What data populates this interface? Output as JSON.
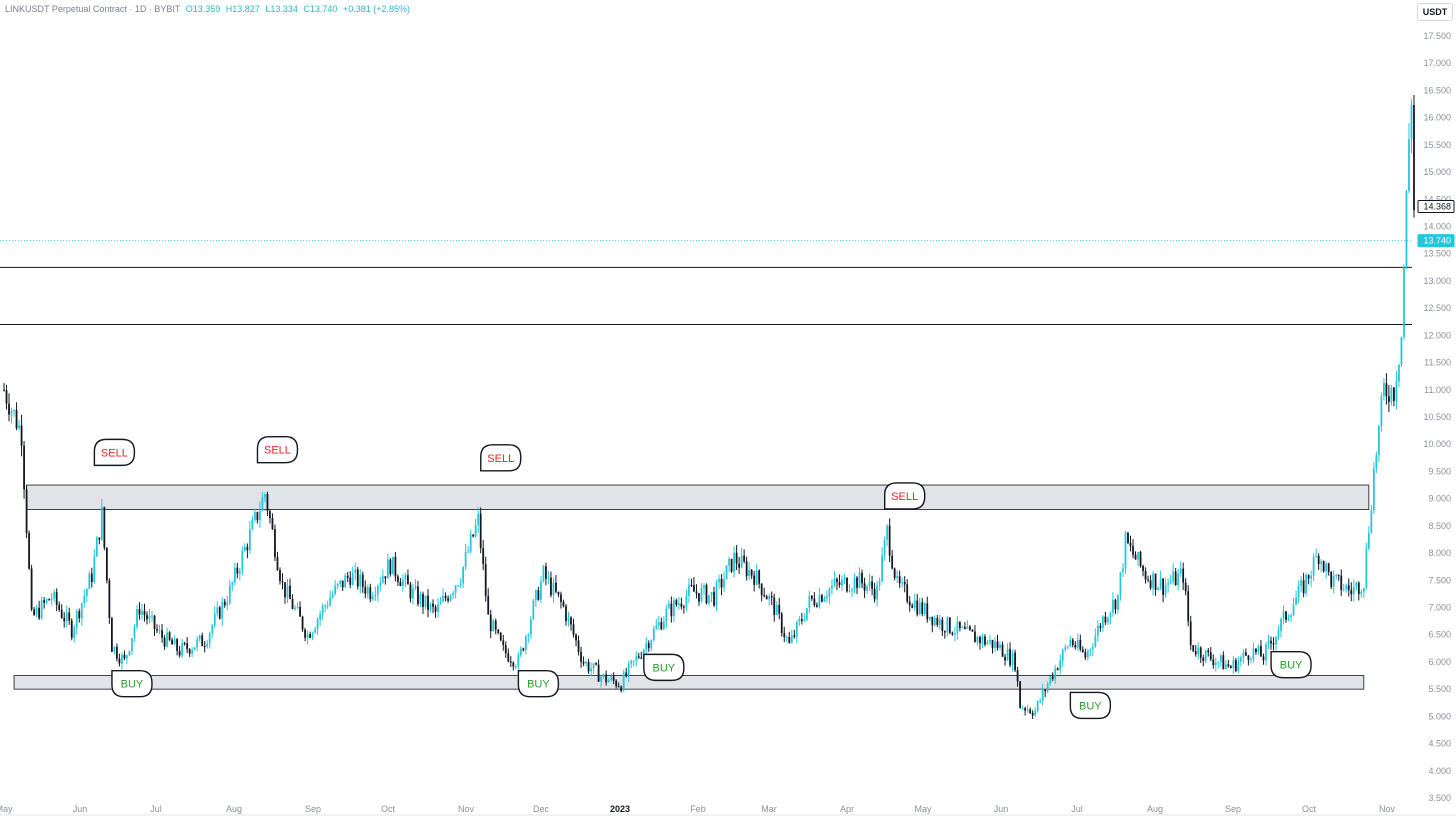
{
  "header": {
    "symbol": "LINKUSDT Perpetual Contract · 1D · BYBIT",
    "open": "O13.359",
    "high": "H13.827",
    "low": "L13.334",
    "close": "C13.740",
    "change": "+0.381 (+2.85%)"
  },
  "currency_badge": "USDT",
  "chart_data": {
    "type": "candlestick",
    "title": "LINKUSDT Perpetual Contract · 1D · BYBIT",
    "ylim": [
      3.5,
      18.0
    ],
    "y_ticks": [
      "3.500",
      "4.000",
      "4.500",
      "5.000",
      "5.500",
      "6.000",
      "6.500",
      "7.000",
      "7.500",
      "8.000",
      "8.500",
      "9.000",
      "9.500",
      "10.000",
      "10.500",
      "11.000",
      "11.500",
      "12.000",
      "12.500",
      "13.000",
      "13.500",
      "14.000",
      "14.500",
      "15.000",
      "15.500",
      "16.000",
      "16.500",
      "17.000",
      "17.500"
    ],
    "x_ticks": [
      "May",
      "Jun",
      "Jul",
      "Aug",
      "Sep",
      "Oct",
      "Nov",
      "Dec",
      "2023",
      "Feb",
      "Mar",
      "Apr",
      "May",
      "Jun",
      "Jul",
      "Aug",
      "Sep",
      "Oct",
      "Nov"
    ],
    "price_path": [
      {
        "date": "2022-05-01",
        "close": 11.0
      },
      {
        "date": "2022-05-08",
        "close": 10.2
      },
      {
        "date": "2022-05-12",
        "close": 6.8
      },
      {
        "date": "2022-05-20",
        "close": 7.2
      },
      {
        "date": "2022-05-28",
        "close": 6.6
      },
      {
        "date": "2022-06-05",
        "close": 7.6
      },
      {
        "date": "2022-06-09",
        "close": 8.7
      },
      {
        "date": "2022-06-13",
        "close": 6.3
      },
      {
        "date": "2022-06-18",
        "close": 6.0
      },
      {
        "date": "2022-06-24",
        "close": 7.0
      },
      {
        "date": "2022-07-02",
        "close": 6.5
      },
      {
        "date": "2022-07-10",
        "close": 6.2
      },
      {
        "date": "2022-07-20",
        "close": 6.4
      },
      {
        "date": "2022-07-30",
        "close": 7.3
      },
      {
        "date": "2022-08-06",
        "close": 8.2
      },
      {
        "date": "2022-08-13",
        "close": 9.1
      },
      {
        "date": "2022-08-20",
        "close": 7.4
      },
      {
        "date": "2022-08-30",
        "close": 6.5
      },
      {
        "date": "2022-09-08",
        "close": 7.2
      },
      {
        "date": "2022-09-16",
        "close": 7.6
      },
      {
        "date": "2022-09-24",
        "close": 7.3
      },
      {
        "date": "2022-10-02",
        "close": 7.8
      },
      {
        "date": "2022-10-10",
        "close": 7.3
      },
      {
        "date": "2022-10-20",
        "close": 6.9
      },
      {
        "date": "2022-10-30",
        "close": 7.6
      },
      {
        "date": "2022-11-06",
        "close": 8.6
      },
      {
        "date": "2022-11-10",
        "close": 6.8
      },
      {
        "date": "2022-11-16",
        "close": 6.2
      },
      {
        "date": "2022-11-22",
        "close": 6.0
      },
      {
        "date": "2022-11-28",
        "close": 7.0
      },
      {
        "date": "2022-12-02",
        "close": 7.6
      },
      {
        "date": "2022-12-10",
        "close": 7.0
      },
      {
        "date": "2022-12-18",
        "close": 6.0
      },
      {
        "date": "2022-12-26",
        "close": 5.7
      },
      {
        "date": "2023-01-02",
        "close": 5.6
      },
      {
        "date": "2023-01-10",
        "close": 6.2
      },
      {
        "date": "2023-01-20",
        "close": 6.9
      },
      {
        "date": "2023-01-30",
        "close": 7.3
      },
      {
        "date": "2023-02-08",
        "close": 7.2
      },
      {
        "date": "2023-02-16",
        "close": 7.9
      },
      {
        "date": "2023-02-24",
        "close": 7.6
      },
      {
        "date": "2023-03-04",
        "close": 7.0
      },
      {
        "date": "2023-03-10",
        "close": 6.3
      },
      {
        "date": "2023-03-18",
        "close": 7.1
      },
      {
        "date": "2023-03-28",
        "close": 7.4
      },
      {
        "date": "2023-04-06",
        "close": 7.5
      },
      {
        "date": "2023-04-14",
        "close": 7.3
      },
      {
        "date": "2023-04-18",
        "close": 8.4
      },
      {
        "date": "2023-04-22",
        "close": 7.4
      },
      {
        "date": "2023-05-01",
        "close": 7.0
      },
      {
        "date": "2023-05-10",
        "close": 6.7
      },
      {
        "date": "2023-05-20",
        "close": 6.5
      },
      {
        "date": "2023-06-01",
        "close": 6.3
      },
      {
        "date": "2023-06-08",
        "close": 6.0
      },
      {
        "date": "2023-06-10",
        "close": 5.2
      },
      {
        "date": "2023-06-16",
        "close": 5.1
      },
      {
        "date": "2023-06-22",
        "close": 5.7
      },
      {
        "date": "2023-06-30",
        "close": 6.4
      },
      {
        "date": "2023-07-06",
        "close": 6.1
      },
      {
        "date": "2023-07-13",
        "close": 6.8
      },
      {
        "date": "2023-07-19",
        "close": 7.2
      },
      {
        "date": "2023-07-22",
        "close": 8.2
      },
      {
        "date": "2023-07-30",
        "close": 7.6
      },
      {
        "date": "2023-08-06",
        "close": 7.4
      },
      {
        "date": "2023-08-14",
        "close": 7.6
      },
      {
        "date": "2023-08-17",
        "close": 6.3
      },
      {
        "date": "2023-08-24",
        "close": 6.1
      },
      {
        "date": "2023-09-02",
        "close": 5.9
      },
      {
        "date": "2023-09-10",
        "close": 6.2
      },
      {
        "date": "2023-09-15",
        "close": 6.1
      },
      {
        "date": "2023-09-22",
        "close": 6.7
      },
      {
        "date": "2023-10-01",
        "close": 7.4
      },
      {
        "date": "2023-10-07",
        "close": 8.0
      },
      {
        "date": "2023-10-12",
        "close": 7.5
      },
      {
        "date": "2023-10-20",
        "close": 7.3
      },
      {
        "date": "2023-10-25",
        "close": 7.5
      },
      {
        "date": "2023-10-29",
        "close": 9.5
      },
      {
        "date": "2023-11-02",
        "close": 11.0
      },
      {
        "date": "2023-11-06",
        "close": 11.0
      },
      {
        "date": "2023-11-09",
        "close": 12.0
      },
      {
        "date": "2023-11-11",
        "close": 14.5
      },
      {
        "date": "2023-11-12",
        "close": 15.6
      },
      {
        "date": "2023-11-13",
        "close": 16.4
      },
      {
        "date": "2023-11-14",
        "close": 14.3
      }
    ],
    "horizontal_lines": [
      12.2,
      13.25
    ],
    "current_price_line": 13.74,
    "price_labels": [
      {
        "text": "14.368",
        "value": 14.368,
        "color": "#131722",
        "fill": "#ffffff"
      },
      {
        "text": "13.740",
        "value": 13.74,
        "color": "#ffffff",
        "fill": "#26c6da"
      }
    ],
    "zones": [
      {
        "name": "resistance-zone",
        "low": 8.8,
        "high": 9.25,
        "start": "2022-05-10",
        "end": "2023-10-27"
      },
      {
        "name": "support-zone",
        "low": 5.5,
        "high": 5.75,
        "start": "2022-05-05",
        "end": "2023-10-25"
      }
    ],
    "annotations": [
      {
        "text": "SELL",
        "type": "sell",
        "date": "2022-06-14",
        "value": 9.85
      },
      {
        "text": "SELL",
        "type": "sell",
        "date": "2022-08-18",
        "value": 9.9
      },
      {
        "text": "SELL",
        "type": "sell",
        "date": "2022-11-15",
        "value": 9.75
      },
      {
        "text": "SELL",
        "type": "sell",
        "date": "2023-04-25",
        "value": 9.05
      },
      {
        "text": "BUY",
        "type": "buy",
        "date": "2022-06-21",
        "value": 5.6
      },
      {
        "text": "BUY",
        "type": "buy",
        "date": "2022-11-30",
        "value": 5.6
      },
      {
        "text": "BUY",
        "type": "buy",
        "date": "2023-01-19",
        "value": 5.9
      },
      {
        "text": "BUY",
        "type": "buy",
        "date": "2023-07-08",
        "value": 5.2
      },
      {
        "text": "BUY",
        "type": "buy",
        "date": "2023-09-26",
        "value": 5.95
      }
    ],
    "colors": {
      "up": "#26c6da",
      "down": "#131722",
      "sell": "#e0252b",
      "buy": "#2b9c2b",
      "zone": "#e0e3e7",
      "axis_text": "#8a8f99"
    },
    "grid": false,
    "legend": "none"
  }
}
